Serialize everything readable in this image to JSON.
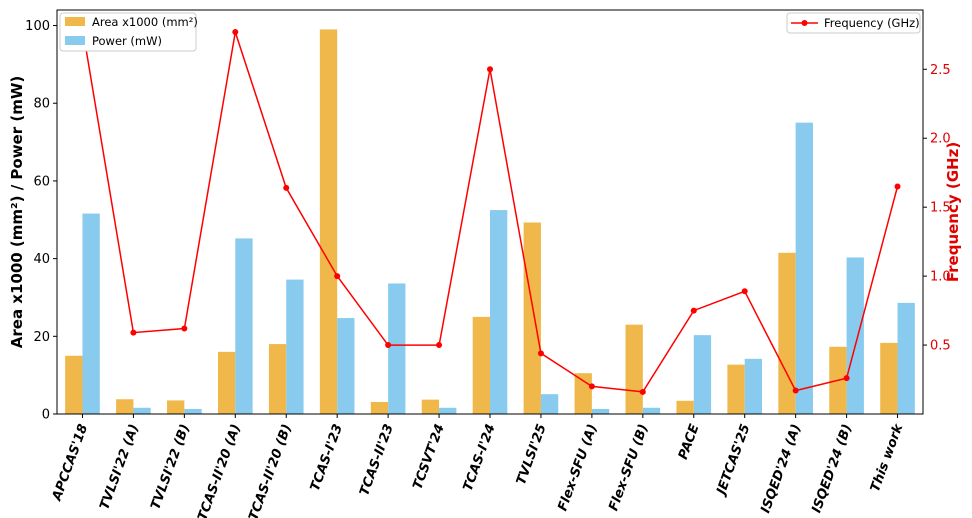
{
  "chart_data": {
    "type": "bar",
    "categories": [
      "APCCAS'18",
      "TVLSI'22 (A)",
      "TVLSI'22 (B)",
      "TCAS-II'20 (A)",
      "TCAS-II'20 (B)",
      "TCAS-I'23",
      "TCAS-II'23",
      "TCSVT'24",
      "TCAS-I'24",
      "TVLSI'25",
      "Flex-SFU (A)",
      "Flex-SFU (B)",
      "PACE",
      "JETCAS'25",
      "ISQED'24 (A)",
      "ISQED'24 (B)",
      "This work"
    ],
    "series": [
      {
        "name": "Area x1000 (mm²)",
        "axis": "left",
        "kind": "bar",
        "color": "#f0b84a",
        "values": [
          15,
          3.8,
          3.5,
          16,
          18,
          99,
          3.1,
          3.7,
          25,
          49.3,
          10.5,
          23,
          3.4,
          12.7,
          41.5,
          17.3,
          18.3
        ]
      },
      {
        "name": "Power (mW)",
        "axis": "left",
        "kind": "bar",
        "color": "#88cbee",
        "values": [
          51.6,
          1.6,
          1.3,
          45.2,
          34.6,
          24.7,
          33.6,
          1.6,
          52.5,
          5.1,
          1.3,
          1.6,
          20.3,
          14.2,
          75,
          40.3,
          28.6
        ]
      },
      {
        "name": "Frequency (GHz)",
        "axis": "right",
        "kind": "line",
        "color": "#ff0000",
        "values": [
          2.8,
          0.59,
          0.62,
          2.77,
          1.64,
          1.0,
          0.5,
          0.5,
          2.5,
          0.44,
          0.2,
          0.16,
          0.75,
          0.89,
          0.17,
          0.26,
          1.65
        ]
      }
    ],
    "ylabel": "Area x1000 (mm²) / Power (mW)",
    "y2label": "Frequency (GHz)",
    "ylim": [
      0,
      104
    ],
    "y2lim": [
      0,
      2.93
    ],
    "yticks": [
      "0",
      "20",
      "40",
      "60",
      "80",
      "100"
    ],
    "ytick_values": [
      0,
      20,
      40,
      60,
      80,
      100
    ],
    "y2ticks": [
      "0.5",
      "1.0",
      "1.5",
      "2.0",
      "2.5"
    ],
    "y2tick_values": [
      0.5,
      1.0,
      1.5,
      2.0,
      2.5
    ],
    "legend_left_placement": "top-left",
    "legend_right_placement": "top-right",
    "grid": false
  }
}
